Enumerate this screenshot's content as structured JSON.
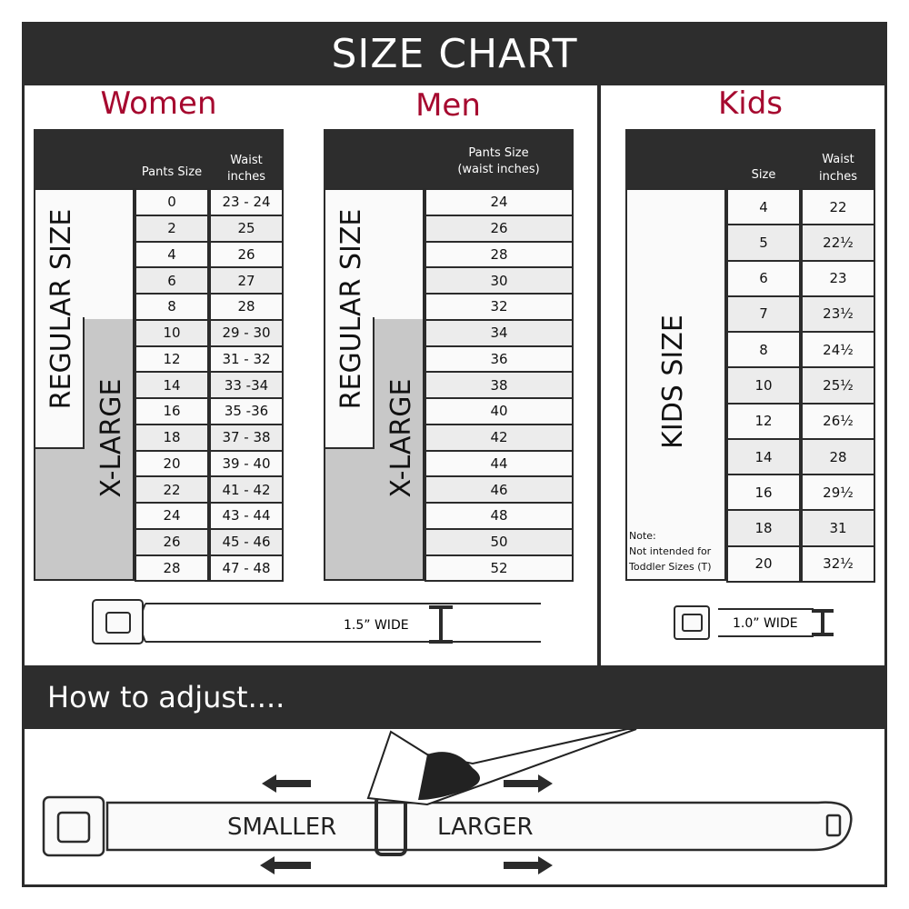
{
  "title": "SIZE CHART",
  "women": {
    "title": "Women",
    "col_headers": [
      "Pants Size",
      "Waist\ninches"
    ],
    "regular_label": "REGULAR SIZE",
    "xlarge_label": "X-LARGE",
    "rows": [
      [
        "0",
        "23 - 24"
      ],
      [
        "2",
        "25"
      ],
      [
        "4",
        "26"
      ],
      [
        "6",
        "27"
      ],
      [
        "8",
        "28"
      ],
      [
        "10",
        "29 - 30"
      ],
      [
        "12",
        "31 - 32"
      ],
      [
        "14",
        "33 -34"
      ],
      [
        "16",
        "35 -36"
      ],
      [
        "18",
        "37 - 38"
      ],
      [
        "20",
        "39 - 40"
      ],
      [
        "22",
        "41 - 42"
      ],
      [
        "24",
        "43 - 44"
      ],
      [
        "26",
        "45 - 46"
      ],
      [
        "28",
        "47 - 48"
      ]
    ],
    "belt_width": "1.5” WIDE"
  },
  "men": {
    "title": "Men",
    "col_header": "Pants Size\n(waist inches)",
    "regular_label": "REGULAR SIZE",
    "xlarge_label": "X-LARGE",
    "rows": [
      "24",
      "26",
      "28",
      "30",
      "32",
      "34",
      "36",
      "38",
      "40",
      "42",
      "44",
      "46",
      "48",
      "50",
      "52"
    ]
  },
  "kids": {
    "title": "Kids",
    "col_headers": [
      "Size",
      "Waist\ninches"
    ],
    "size_label": "KIDS SIZE",
    "note": "Note:\nNot intended for\nToddler Sizes (T)",
    "rows": [
      [
        "4",
        "22"
      ],
      [
        "5",
        "22½"
      ],
      [
        "6",
        "23"
      ],
      [
        "7",
        "23½"
      ],
      [
        "8",
        "24½"
      ],
      [
        "10",
        "25½"
      ],
      [
        "12",
        "26½"
      ],
      [
        "14",
        "28"
      ],
      [
        "16",
        "29½"
      ],
      [
        "18",
        "31"
      ],
      [
        "20",
        "32½"
      ]
    ],
    "belt_width": "1.0” WIDE"
  },
  "adjust": {
    "title": "How to adjust....",
    "smaller": "SMALLER",
    "larger": "LARGER"
  },
  "colors": {
    "accent": "#a6092f",
    "dark": "#2d2d2d",
    "xlarge_gray": "#c8c8c8"
  }
}
